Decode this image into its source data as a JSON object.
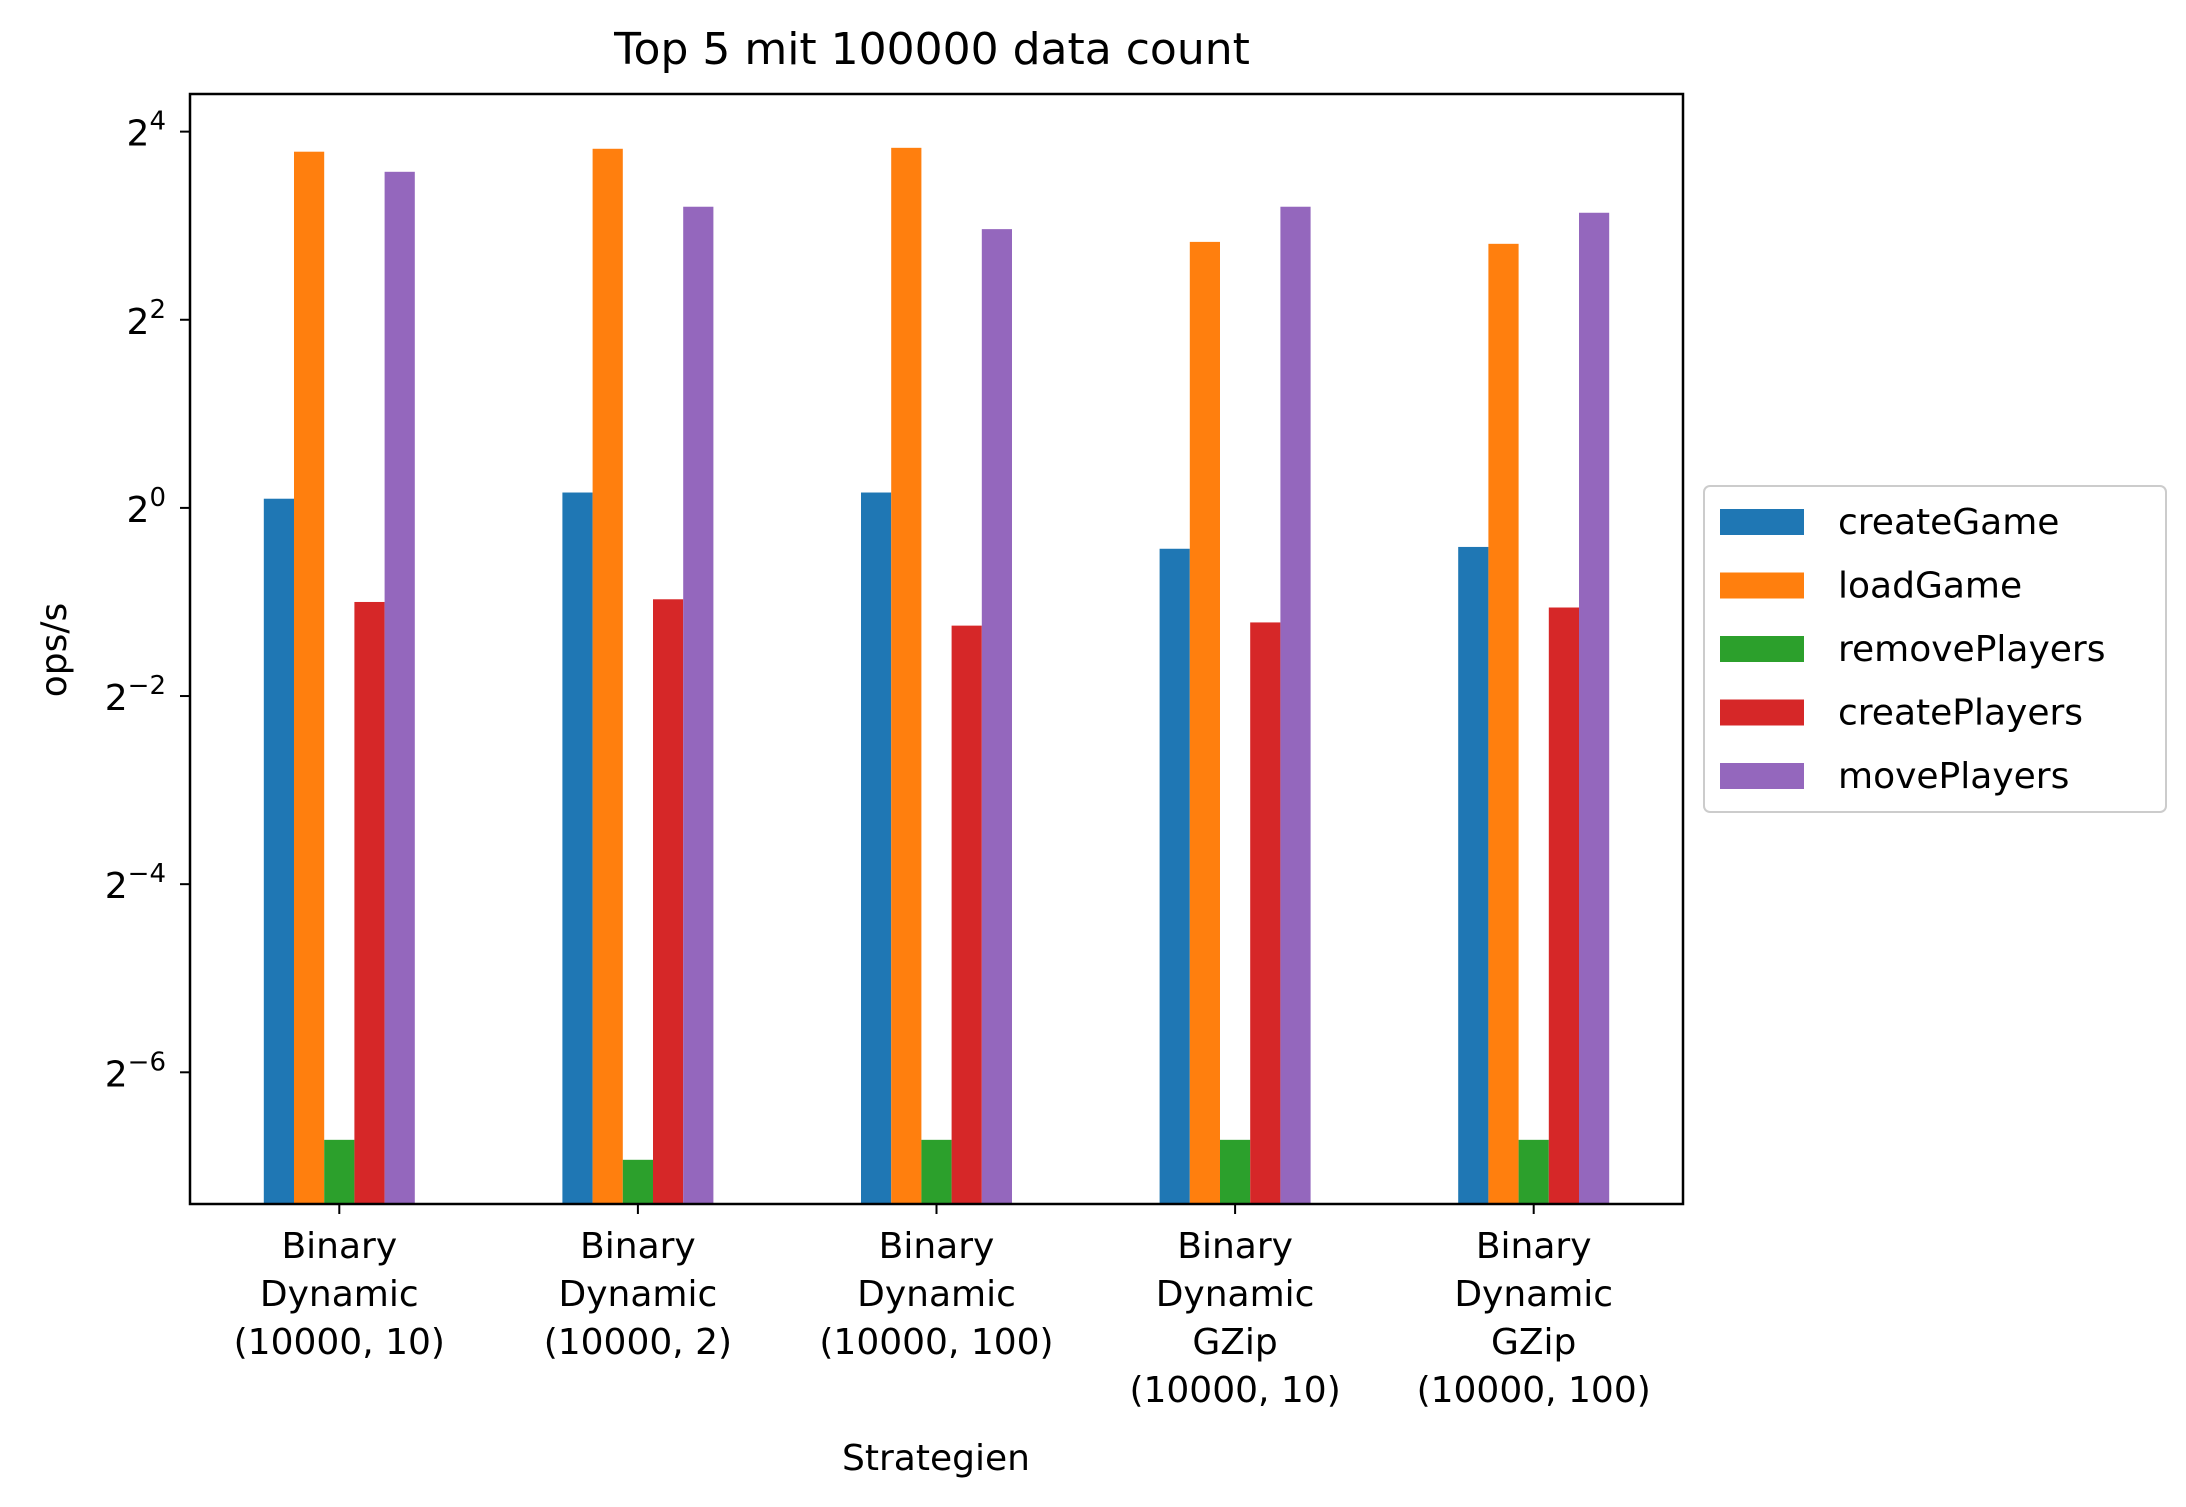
{
  "chart_data": {
    "type": "bar",
    "title": "Top 5 mit 100000 data count",
    "xlabel": "Strategien",
    "ylabel": "ops/s",
    "yscale": "log2",
    "ylim_exponent": [
      -7.4,
      4.4
    ],
    "yticks": [
      {
        "base": "2",
        "exp": "4",
        "value": 16
      },
      {
        "base": "2",
        "exp": "2",
        "value": 4
      },
      {
        "base": "2",
        "exp": "0",
        "value": 1
      },
      {
        "base": "2",
        "exp": "−2",
        "value": 0.25
      },
      {
        "base": "2",
        "exp": "−4",
        "value": 0.0625
      },
      {
        "base": "2",
        "exp": "−6",
        "value": 0.015625
      }
    ],
    "categories": [
      [
        "Binary",
        "Dynamic",
        "(10000, 10)"
      ],
      [
        "Binary",
        "Dynamic",
        "(10000, 2)"
      ],
      [
        "Binary",
        "Dynamic",
        "(10000, 100)"
      ],
      [
        "Binary",
        "Dynamic",
        "GZip",
        "(10000, 10)"
      ],
      [
        "Binary",
        "Dynamic",
        "GZip",
        "(10000, 100)"
      ]
    ],
    "series": [
      {
        "name": "createGame",
        "color": "#1f77b4",
        "values": [
          1.07,
          1.12,
          1.12,
          0.74,
          0.75
        ]
      },
      {
        "name": "loadGame",
        "color": "#ff7f0e",
        "values": [
          13.8,
          14.1,
          14.2,
          7.1,
          7.0
        ]
      },
      {
        "name": "removePlayers",
        "color": "#2ca02c",
        "values": [
          0.0095,
          0.0082,
          0.0095,
          0.0095,
          0.0095
        ]
      },
      {
        "name": "createPlayers",
        "color": "#d62728",
        "values": [
          0.5,
          0.51,
          0.42,
          0.43,
          0.48
        ]
      },
      {
        "name": "movePlayers",
        "color": "#9467bd",
        "values": [
          11.9,
          9.2,
          7.8,
          9.2,
          8.8
        ]
      }
    ],
    "legend": {
      "placement": "right-outside",
      "entries": [
        "createGame",
        "loadGame",
        "removePlayers",
        "createPlayers",
        "movePlayers"
      ]
    },
    "grid": false
  }
}
